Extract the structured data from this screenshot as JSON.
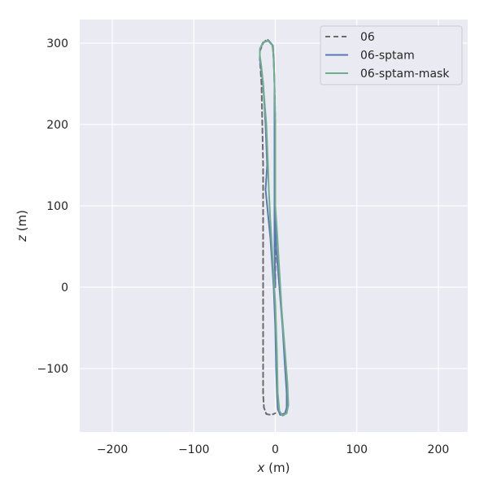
{
  "chart_data": {
    "type": "line",
    "title": "",
    "xlabel_var": "x",
    "xlabel_unit": " (m)",
    "ylabel_var": "z",
    "ylabel_unit": " (m)",
    "xlim": [
      -240,
      236
    ],
    "ylim": [
      -178,
      329
    ],
    "xticks": [
      -200,
      -100,
      0,
      100,
      200
    ],
    "xtick_labels": [
      "−200",
      "−100",
      "0",
      "100",
      "200"
    ],
    "yticks": [
      -100,
      0,
      100,
      200,
      300
    ],
    "ytick_labels": [
      "−100",
      "0",
      "100",
      "200",
      "300"
    ],
    "grid": true,
    "legend_position": "top-right",
    "colors": {
      "background": "#eaeaf2",
      "grid": "#ffffff",
      "text": "#262626",
      "legend_bg": "#eaeaf2",
      "legend_border": "#cccccc"
    },
    "series": [
      {
        "name": "06",
        "color": "#6b6b6b",
        "dash": "6,4",
        "points": [
          [
            0,
            0
          ],
          [
            0,
            100
          ],
          [
            0,
            200
          ],
          [
            -1,
            250
          ],
          [
            -2,
            280
          ],
          [
            -3,
            295
          ],
          [
            -6,
            300
          ],
          [
            -10,
            305
          ],
          [
            -15,
            300
          ],
          [
            -19,
            290
          ],
          [
            -19,
            280
          ],
          [
            -17,
            250
          ],
          [
            -16,
            200
          ],
          [
            -15,
            150
          ],
          [
            -15,
            100
          ],
          [
            -15,
            50
          ],
          [
            -15,
            0
          ],
          [
            -15,
            -50
          ],
          [
            -15,
            -100
          ],
          [
            -15,
            -130
          ],
          [
            -14,
            -148
          ],
          [
            -11,
            -156
          ],
          [
            -5,
            -157
          ],
          [
            0,
            -155
          ]
        ]
      },
      {
        "name": "06-sptam",
        "color": "#5a78b4",
        "dash": "",
        "points": [
          [
            0,
            0
          ],
          [
            -1,
            50
          ],
          [
            -1,
            100
          ],
          [
            -1,
            150
          ],
          [
            -1,
            200
          ],
          [
            -1,
            250
          ],
          [
            -2,
            280
          ],
          [
            -3,
            297
          ],
          [
            -8,
            303
          ],
          [
            -15,
            301
          ],
          [
            -19,
            292
          ],
          [
            -19,
            280
          ],
          [
            -15,
            250
          ],
          [
            -12,
            200
          ],
          [
            -10,
            150
          ],
          [
            -12,
            120
          ],
          [
            -10,
            100
          ],
          [
            -6,
            60
          ],
          [
            -2,
            0
          ],
          [
            0,
            -50
          ],
          [
            1,
            -100
          ],
          [
            2,
            -130
          ],
          [
            3,
            -150
          ],
          [
            6,
            -157
          ],
          [
            12,
            -155
          ],
          [
            14,
            -148
          ],
          [
            14,
            -130
          ],
          [
            12,
            -100
          ],
          [
            9,
            -50
          ],
          [
            5,
            0
          ],
          [
            1,
            50
          ],
          [
            0,
            100
          ]
        ]
      },
      {
        "name": "06-sptam-mask",
        "color": "#6fae8c",
        "dash": "",
        "points": [
          [
            0,
            100
          ],
          [
            0,
            150
          ],
          [
            0,
            200
          ],
          [
            -1,
            250
          ],
          [
            -2,
            285
          ],
          [
            -4,
            298
          ],
          [
            -9,
            303
          ],
          [
            -15,
            301
          ],
          [
            -19,
            293
          ],
          [
            -19,
            285
          ],
          [
            -17,
            270
          ],
          [
            -15,
            250
          ],
          [
            -11,
            200
          ],
          [
            -9,
            150
          ],
          [
            -8,
            120
          ],
          [
            -6,
            80
          ],
          [
            -3,
            30
          ],
          [
            0,
            -20
          ],
          [
            2,
            -80
          ],
          [
            3,
            -130
          ],
          [
            5,
            -152
          ],
          [
            9,
            -158
          ],
          [
            14,
            -155
          ],
          [
            16,
            -145
          ],
          [
            15,
            -120
          ],
          [
            12,
            -80
          ],
          [
            8,
            -30
          ],
          [
            5,
            20
          ],
          [
            2,
            70
          ],
          [
            0,
            100
          ]
        ]
      }
    ]
  }
}
